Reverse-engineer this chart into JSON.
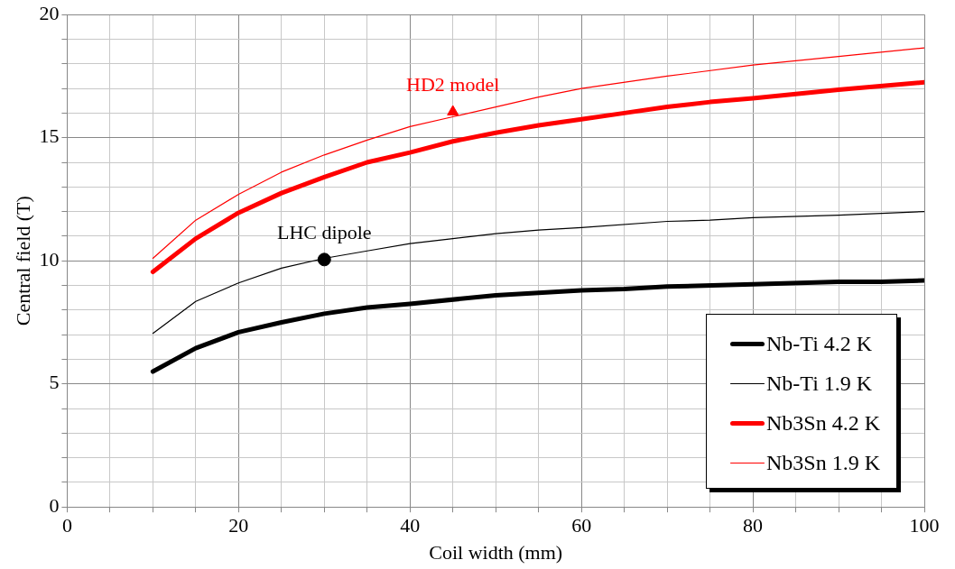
{
  "chart_data": {
    "type": "line",
    "xlabel": "Coil width (mm)",
    "ylabel": "Central field (T)",
    "xlim": [
      0,
      100
    ],
    "ylim": [
      0,
      20
    ],
    "xticks": [
      0,
      {
        "value": 5,
        "label": null
      },
      {
        "value": 10,
        "label": null
      },
      {
        "value": 15,
        "label": null
      },
      20,
      {
        "value": 25,
        "label": null
      },
      {
        "value": 30,
        "label": null
      },
      {
        "value": 35,
        "label": null
      },
      40,
      {
        "value": 45,
        "label": null
      },
      {
        "value": 50,
        "label": null
      },
      {
        "value": 55,
        "label": null
      },
      60,
      {
        "value": 65,
        "label": null
      },
      {
        "value": 70,
        "label": null
      },
      {
        "value": 75,
        "label": null
      },
      80,
      {
        "value": 85,
        "label": null
      },
      {
        "value": 90,
        "label": null
      },
      {
        "value": 95,
        "label": null
      },
      100
    ],
    "yticks": [
      0,
      {
        "value": 1,
        "label": null
      },
      {
        "value": 2,
        "label": null
      },
      {
        "value": 3,
        "label": null
      },
      {
        "value": 4,
        "label": null
      },
      5,
      {
        "value": 6,
        "label": null
      },
      {
        "value": 7,
        "label": null
      },
      {
        "value": 8,
        "label": null
      },
      {
        "value": 9,
        "label": null
      },
      10,
      {
        "value": 11,
        "label": null
      },
      {
        "value": 12,
        "label": null
      },
      {
        "value": 13,
        "label": null
      },
      {
        "value": 14,
        "label": null
      },
      15,
      {
        "value": 16,
        "label": null
      },
      {
        "value": 17,
        "label": null
      },
      {
        "value": 18,
        "label": null
      },
      {
        "value": 19,
        "label": null
      },
      20
    ],
    "grid": true,
    "legend": "bottom right",
    "marker": "none",
    "line_style": "solid",
    "series": [
      {
        "name": "Nb-Ti 4.2 K",
        "color": "#000000",
        "x": [
          10,
          15,
          20,
          25,
          30,
          35,
          40,
          50,
          60,
          65,
          70,
          80,
          90,
          95,
          100
        ],
        "values": [
          5.5,
          6.45,
          7.1,
          7.5,
          7.85,
          8.1,
          8.25,
          8.6,
          8.8,
          8.85,
          8.95,
          9.05,
          9.15,
          9.15,
          9.2
        ]
      },
      {
        "name": "Nb-Ti 1.9 K",
        "color": "#000000",
        "x": [
          10,
          15,
          20,
          25,
          30,
          35,
          40,
          45,
          50,
          55,
          60,
          70,
          75,
          80,
          90,
          100
        ],
        "values": [
          7.05,
          8.35,
          9.1,
          9.7,
          10.1,
          10.4,
          10.7,
          10.9,
          11.1,
          11.25,
          11.35,
          11.6,
          11.65,
          11.75,
          11.85,
          12.0
        ]
      },
      {
        "name": "Nb3Sn 4.2 K",
        "color": "#ff0000",
        "x": [
          10,
          15,
          20,
          25,
          30,
          35,
          40,
          45,
          50,
          55,
          60,
          65,
          70,
          75,
          80,
          90,
          100
        ],
        "values": [
          9.55,
          10.9,
          11.95,
          12.75,
          13.4,
          14.0,
          14.4,
          14.85,
          15.2,
          15.5,
          15.75,
          16.0,
          16.25,
          16.45,
          16.6,
          16.95,
          17.25
        ]
      },
      {
        "name": "Nb3Sn 1.9 K",
        "color": "#ff0000",
        "x": [
          10,
          15,
          20,
          25,
          30,
          35,
          40,
          45,
          50,
          55,
          60,
          70,
          80,
          90,
          100
        ],
        "values": [
          10.1,
          11.65,
          12.7,
          13.6,
          14.3,
          14.9,
          15.45,
          15.85,
          16.25,
          16.65,
          17.0,
          17.5,
          17.95,
          18.3,
          18.65
        ]
      },
      {
        "type": "scatter",
        "color": "#000000",
        "marker": "circle",
        "x": [
          30
        ],
        "values": [
          10.05
        ]
      },
      {
        "type": "scatter",
        "color": "#ff0000",
        "marker": "triangle",
        "x": [
          45
        ],
        "values": [
          16.05
        ]
      }
    ],
    "annotations": [
      {
        "text": "LHC dipole",
        "x": 30,
        "y": 10.05
      },
      {
        "text": "HD2 model",
        "x": 45,
        "y": 16.05
      }
    ]
  }
}
